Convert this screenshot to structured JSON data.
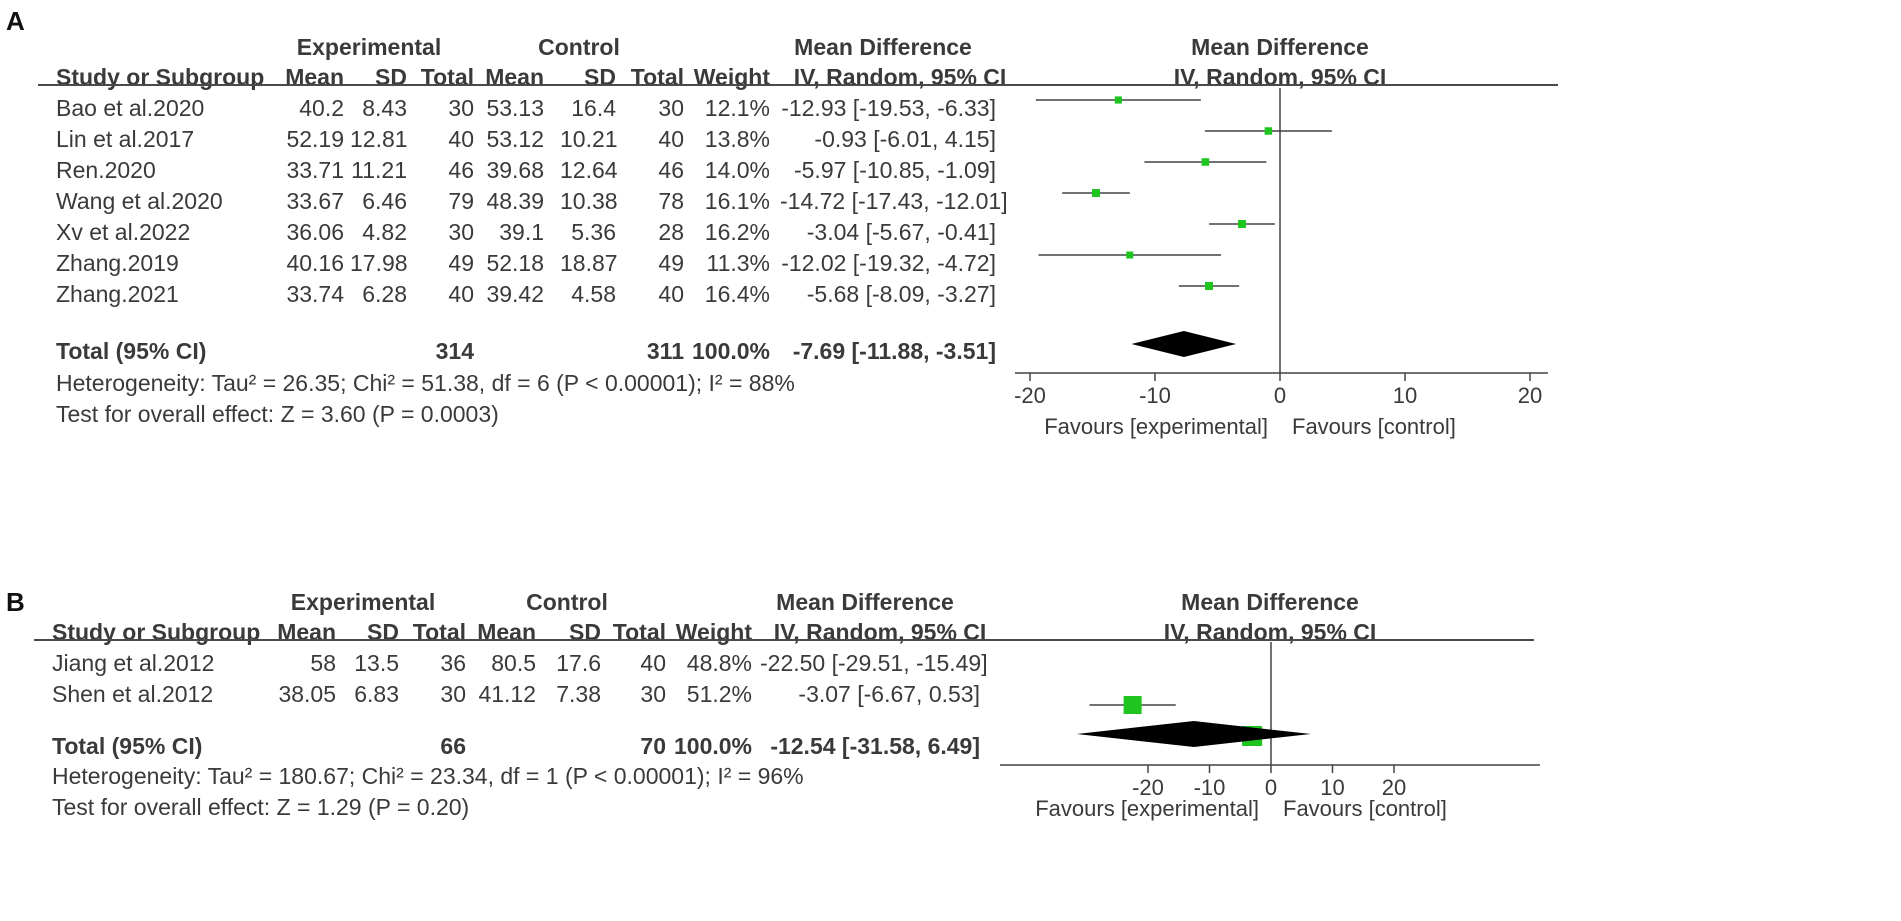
{
  "colors": {
    "marker": "#1ec51e",
    "line": "#444444",
    "text": "#3a3a3a"
  },
  "chart_data": [
    {
      "type": "forest",
      "panel_label": "A",
      "group_headers": {
        "experimental": "Experimental",
        "control": "Control"
      },
      "right_header": "Mean Difference",
      "columns": [
        "Study or Subgroup",
        "Mean",
        "SD",
        "Total",
        "Mean",
        "SD",
        "Total",
        "Weight",
        "IV, Random, 95% CI"
      ],
      "plot_header": {
        "title": "Mean Difference",
        "subtitle": "IV, Random, 95% CI"
      },
      "studies": [
        {
          "name": "Bao et al.2020",
          "exp_mean": "40.2",
          "exp_sd": "8.43",
          "exp_total": "30",
          "ctl_mean": "53.13",
          "ctl_sd": "16.4",
          "ctl_total": "30",
          "weight": "12.1%",
          "ci_text": "-12.93 [-19.53, -6.33]",
          "md": -12.93,
          "lo": -19.53,
          "hi": -6.33,
          "w": 12.1
        },
        {
          "name": "Lin et al.2017",
          "exp_mean": "52.19",
          "exp_sd": "12.81",
          "exp_total": "40",
          "ctl_mean": "53.12",
          "ctl_sd": "10.21",
          "ctl_total": "40",
          "weight": "13.8%",
          "ci_text": "-0.93 [-6.01, 4.15]",
          "md": -0.93,
          "lo": -6.01,
          "hi": 4.15,
          "w": 13.8
        },
        {
          "name": "Ren.2020",
          "exp_mean": "33.71",
          "exp_sd": "11.21",
          "exp_total": "46",
          "ctl_mean": "39.68",
          "ctl_sd": "12.64",
          "ctl_total": "46",
          "weight": "14.0%",
          "ci_text": "-5.97 [-10.85, -1.09]",
          "md": -5.97,
          "lo": -10.85,
          "hi": -1.09,
          "w": 14.0
        },
        {
          "name": "Wang et al.2020",
          "exp_mean": "33.67",
          "exp_sd": "6.46",
          "exp_total": "79",
          "ctl_mean": "48.39",
          "ctl_sd": "10.38",
          "ctl_total": "78",
          "weight": "16.1%",
          "ci_text": "-14.72 [-17.43, -12.01]",
          "md": -14.72,
          "lo": -17.43,
          "hi": -12.01,
          "w": 16.1
        },
        {
          "name": "Xv et al.2022",
          "exp_mean": "36.06",
          "exp_sd": "4.82",
          "exp_total": "30",
          "ctl_mean": "39.1",
          "ctl_sd": "5.36",
          "ctl_total": "28",
          "weight": "16.2%",
          "ci_text": "-3.04 [-5.67, -0.41]",
          "md": -3.04,
          "lo": -5.67,
          "hi": -0.41,
          "w": 16.2
        },
        {
          "name": "Zhang.2019",
          "exp_mean": "40.16",
          "exp_sd": "17.98",
          "exp_total": "49",
          "ctl_mean": "52.18",
          "ctl_sd": "18.87",
          "ctl_total": "49",
          "weight": "11.3%",
          "ci_text": "-12.02 [-19.32, -4.72]",
          "md": -12.02,
          "lo": -19.32,
          "hi": -4.72,
          "w": 11.3
        },
        {
          "name": "Zhang.2021",
          "exp_mean": "33.74",
          "exp_sd": "6.28",
          "exp_total": "40",
          "ctl_mean": "39.42",
          "ctl_sd": "4.58",
          "ctl_total": "40",
          "weight": "16.4%",
          "ci_text": "-5.68 [-8.09, -3.27]",
          "md": -5.68,
          "lo": -8.09,
          "hi": -3.27,
          "w": 16.4
        }
      ],
      "total": {
        "label": "Total (95% CI)",
        "exp_total": "314",
        "ctl_total": "311",
        "weight": "100.0%",
        "ci_text": "-7.69 [-11.88, -3.51]",
        "md": -7.69,
        "lo": -11.88,
        "hi": -3.51
      },
      "heterogeneity": "Heterogeneity: Tau² = 26.35; Chi² = 51.38, df = 6 (P < 0.00001); I² = 88%",
      "overall_effect": "Test for overall effect: Z = 3.60 (P = 0.0003)",
      "x_axis": {
        "range": [
          -20,
          20
        ],
        "ticks": [
          -20,
          -10,
          0,
          10,
          20
        ],
        "tick_labels": [
          "-20",
          "-10",
          "0",
          "10",
          "20"
        ]
      },
      "favours": {
        "left": "Favours [experimental]",
        "right": "Favours [control]"
      }
    },
    {
      "type": "forest",
      "panel_label": "B",
      "group_headers": {
        "experimental": "Experimental",
        "control": "Control"
      },
      "right_header": "Mean Difference",
      "columns": [
        "Study or Subgroup",
        "Mean",
        "SD",
        "Total",
        "Mean",
        "SD",
        "Total",
        "Weight",
        "IV, Random, 95% CI"
      ],
      "plot_header": {
        "title": "Mean Difference",
        "subtitle": "IV, Random, 95% CI"
      },
      "studies": [
        {
          "name": "Jiang et al.2012",
          "exp_mean": "58",
          "exp_sd": "13.5",
          "exp_total": "36",
          "ctl_mean": "80.5",
          "ctl_sd": "17.6",
          "ctl_total": "40",
          "weight": "48.8%",
          "ci_text": "-22.50 [-29.51, -15.49]",
          "md": -22.5,
          "lo": -29.51,
          "hi": -15.49,
          "w": 48.8
        },
        {
          "name": "Shen et al.2012",
          "exp_mean": "38.05",
          "exp_sd": "6.83",
          "exp_total": "30",
          "ctl_mean": "41.12",
          "ctl_sd": "7.38",
          "ctl_total": "30",
          "weight": "51.2%",
          "ci_text": "-3.07 [-6.67, 0.53]",
          "md": -3.07,
          "lo": -6.67,
          "hi": 0.53,
          "w": 51.2
        }
      ],
      "total": {
        "label": "Total (95% CI)",
        "exp_total": "66",
        "ctl_total": "70",
        "weight": "100.0%",
        "ci_text": "-12.54 [-31.58, 6.49]",
        "md": -12.54,
        "lo": -31.58,
        "hi": 6.49
      },
      "heterogeneity": "Heterogeneity: Tau² = 180.67; Chi² = 23.34, df = 1 (P < 0.00001); I² = 96%",
      "overall_effect": "Test for overall effect: Z = 1.29 (P = 0.20)",
      "x_axis": {
        "range": [
          -45,
          45
        ],
        "ticks": [
          -20,
          -10,
          0,
          10,
          20
        ],
        "tick_labels": [
          "-20",
          "-10",
          "0",
          "10",
          "20"
        ]
      },
      "favours": {
        "left": "Favours [experimental]",
        "right": "Favours [control]"
      }
    }
  ]
}
